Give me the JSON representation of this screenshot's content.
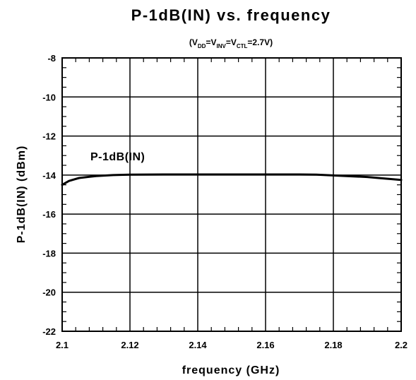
{
  "chart_data": {
    "type": "line",
    "title": "P-1dB(IN) vs. frequency",
    "subtitle": {
      "open": "(V",
      "sub1": "DD",
      "eq1": "=V",
      "sub2": "INV",
      "eq2": "=V",
      "sub3": "CTL",
      "tail": "=2.7V)"
    },
    "xlabel": "frequency (GHz)",
    "ylabel": "P-1dB(IN) (dBm)",
    "xlim": [
      2.1,
      2.2
    ],
    "ylim": [
      -22,
      -8
    ],
    "x_ticks": [
      "2.1",
      "2.12",
      "2.14",
      "2.16",
      "2.18",
      "2.2"
    ],
    "y_ticks": [
      "-8",
      "-10",
      "-12",
      "-14",
      "-16",
      "-18",
      "-20",
      "-22"
    ],
    "grid": true,
    "series": [
      {
        "name": "P-1dB(IN)",
        "x": [
          2.1,
          2.102,
          2.105,
          2.11,
          2.115,
          2.12,
          2.13,
          2.14,
          2.15,
          2.16,
          2.17,
          2.175,
          2.18,
          2.19,
          2.2
        ],
        "y": [
          -14.5,
          -14.3,
          -14.15,
          -14.05,
          -14.0,
          -13.98,
          -13.97,
          -13.97,
          -13.97,
          -13.97,
          -13.97,
          -13.98,
          -14.02,
          -14.1,
          -14.25
        ]
      }
    ]
  }
}
